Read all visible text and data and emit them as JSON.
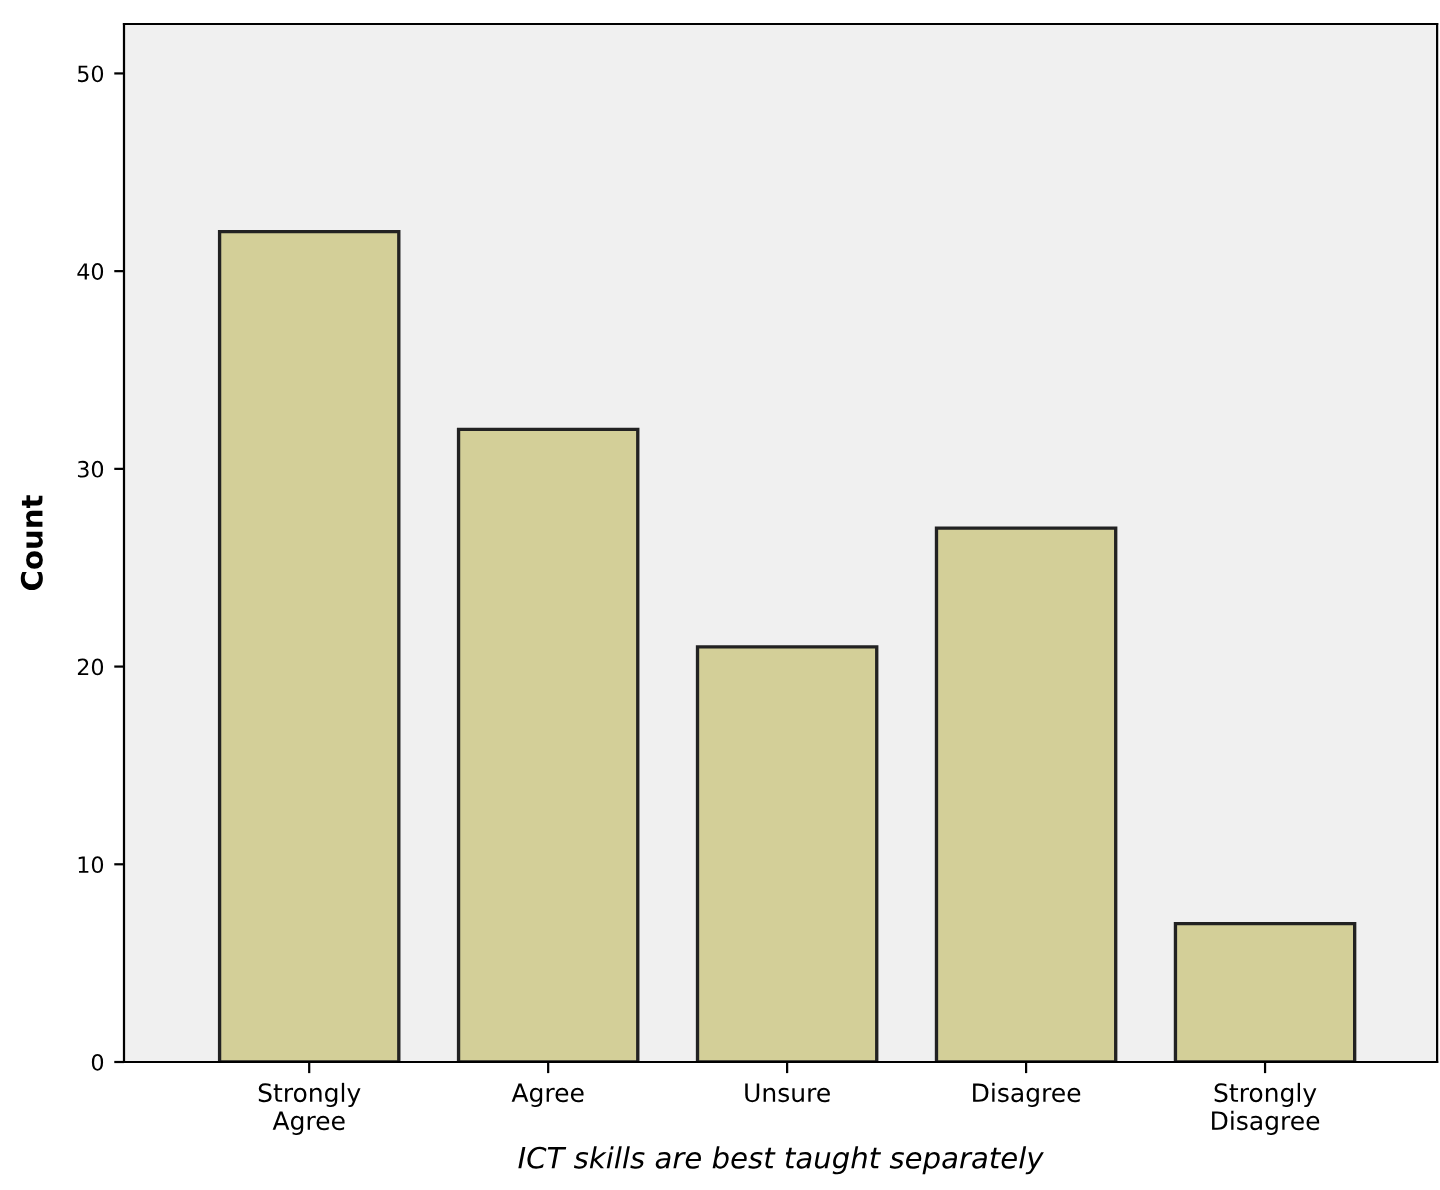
{
  "chart_data": {
    "type": "bar",
    "xlabel": "ICT skills are best taught separately",
    "ylabel": "Count",
    "categories": [
      "Strongly\nAgree",
      "Agree",
      "Unsure",
      "Disagree",
      "Strongly\nDisagree"
    ],
    "values": [
      42,
      32,
      21,
      27,
      7
    ],
    "color": "#d3cf98",
    "ylim": [
      0,
      52.5
    ],
    "yticks": [
      0,
      10,
      20,
      30,
      40,
      50
    ],
    "grid": false
  }
}
